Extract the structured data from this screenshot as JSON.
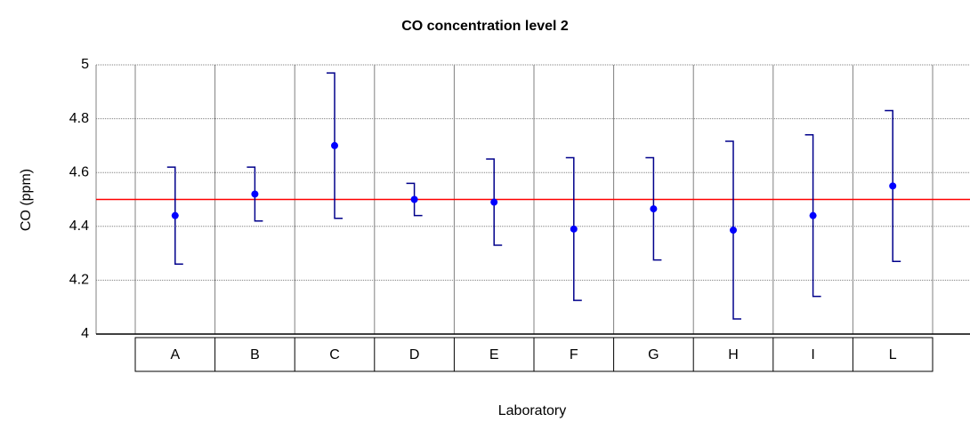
{
  "chart_data": {
    "type": "errorbar",
    "title": "CO concentration level 2",
    "x_label": "Laboratory",
    "y_label": "CO (ppm)",
    "categories": [
      "A",
      "B",
      "C",
      "D",
      "E",
      "F",
      "G",
      "H",
      "I",
      "L"
    ],
    "series": [
      {
        "color": "#0000ff",
        "error_color": "#00008b",
        "values": [
          4.44,
          4.52,
          4.7,
          4.5,
          4.49,
          4.39,
          4.465,
          4.386,
          4.44,
          4.55
        ],
        "errors": [
          0.18,
          0.1,
          0.27,
          0.06,
          0.16,
          0.265,
          0.19,
          0.33,
          0.3,
          0.28
        ]
      }
    ],
    "reference_line": {
      "value": 4.5,
      "color": "#ff0000"
    },
    "ylim": [
      4,
      5
    ],
    "yticks": [
      4,
      4.2,
      4.4,
      4.6,
      4.8,
      5
    ],
    "grid": true
  }
}
